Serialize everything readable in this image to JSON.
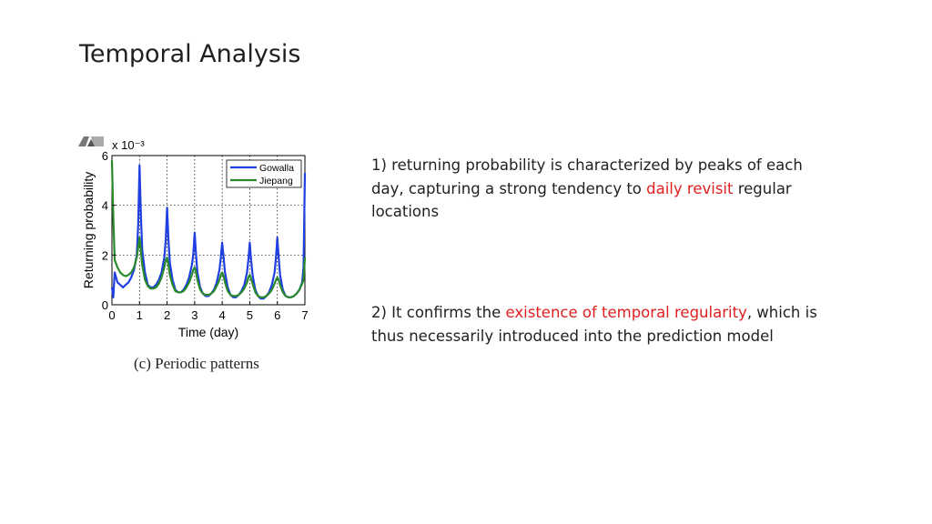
{
  "slide": {
    "title": "Temporal Analysis",
    "points": [
      {
        "before": "1) returning probability is characterized by peaks of each day, capturing a strong tendency to ",
        "highlight": "daily revisit",
        "after": " regular locations"
      },
      {
        "before": "2) It confirms the ",
        "highlight": "existence of temporal regularity",
        "after": ", which is thus necessarily introduced into the prediction model"
      }
    ]
  },
  "colors": {
    "highlight": "#e02020",
    "gowalla": "#1f3fe0",
    "jiepang": "#2a8a2a"
  },
  "chart_data": {
    "type": "line",
    "caption": "(c) Periodic patterns",
    "xlabel": "Time (day)",
    "ylabel": "Returning probability",
    "y_multiplier": "x 10⁻³",
    "xlim": [
      0,
      7
    ],
    "ylim": [
      0,
      6
    ],
    "xticks": [
      "0",
      "1",
      "2",
      "3",
      "4",
      "5",
      "6",
      "7"
    ],
    "yticks": [
      "0",
      "2",
      "4",
      "6"
    ],
    "grid": true,
    "legend_position": "top-right",
    "series": [
      {
        "name": "Gowalla",
        "x": [
          0,
          0.05,
          0.1,
          0.2,
          0.3,
          0.4,
          0.5,
          0.6,
          0.7,
          0.8,
          0.9,
          0.95,
          1.0,
          1.05,
          1.1,
          1.2,
          1.3,
          1.4,
          1.5,
          1.6,
          1.7,
          1.8,
          1.9,
          1.95,
          2.0,
          2.05,
          2.1,
          2.2,
          2.3,
          2.4,
          2.5,
          2.6,
          2.7,
          2.8,
          2.9,
          2.95,
          3.0,
          3.05,
          3.1,
          3.2,
          3.3,
          3.4,
          3.5,
          3.6,
          3.7,
          3.8,
          3.9,
          3.95,
          4.0,
          4.05,
          4.1,
          4.2,
          4.3,
          4.4,
          4.5,
          4.6,
          4.7,
          4.8,
          4.9,
          4.95,
          5.0,
          5.05,
          5.1,
          5.2,
          5.3,
          5.4,
          5.5,
          5.6,
          5.7,
          5.8,
          5.9,
          5.95,
          6.0,
          6.05,
          6.1,
          6.2,
          6.3,
          6.4,
          6.5,
          6.6,
          6.7,
          6.8,
          6.9,
          6.95,
          7.0
        ],
        "y": [
          0.7,
          0.3,
          1.3,
          0.9,
          0.8,
          0.7,
          0.8,
          0.9,
          1.1,
          1.4,
          2.0,
          3.2,
          5.6,
          3.6,
          2.2,
          1.3,
          0.8,
          0.7,
          0.7,
          0.8,
          1.0,
          1.3,
          1.9,
          2.6,
          3.9,
          2.6,
          1.7,
          1.0,
          0.6,
          0.5,
          0.5,
          0.6,
          0.8,
          1.1,
          1.6,
          2.0,
          2.9,
          2.0,
          1.3,
          0.7,
          0.45,
          0.35,
          0.35,
          0.45,
          0.6,
          0.9,
          1.4,
          1.9,
          2.5,
          1.9,
          1.3,
          0.7,
          0.4,
          0.3,
          0.3,
          0.4,
          0.55,
          0.8,
          1.3,
          1.8,
          2.5,
          1.8,
          1.2,
          0.6,
          0.35,
          0.25,
          0.25,
          0.35,
          0.5,
          0.8,
          1.3,
          1.9,
          2.7,
          1.9,
          1.2,
          0.6,
          0.35,
          0.3,
          0.3,
          0.35,
          0.45,
          0.6,
          0.9,
          1.5,
          5.3
        ]
      },
      {
        "name": "Jiepang",
        "x": [
          0,
          0.05,
          0.1,
          0.2,
          0.3,
          0.4,
          0.5,
          0.6,
          0.7,
          0.8,
          0.9,
          0.95,
          1.0,
          1.05,
          1.1,
          1.2,
          1.3,
          1.4,
          1.5,
          1.6,
          1.7,
          1.8,
          1.9,
          1.95,
          2.0,
          2.05,
          2.1,
          2.2,
          2.3,
          2.4,
          2.5,
          2.6,
          2.7,
          2.8,
          2.9,
          2.95,
          3.0,
          3.05,
          3.1,
          3.2,
          3.3,
          3.4,
          3.5,
          3.6,
          3.7,
          3.8,
          3.9,
          3.95,
          4.0,
          4.05,
          4.1,
          4.2,
          4.3,
          4.4,
          4.5,
          4.6,
          4.7,
          4.8,
          4.9,
          4.95,
          5.0,
          5.05,
          5.1,
          5.2,
          5.3,
          5.4,
          5.5,
          5.6,
          5.7,
          5.8,
          5.9,
          5.95,
          6.0,
          6.05,
          6.1,
          6.2,
          6.3,
          6.4,
          6.5,
          6.6,
          6.7,
          6.8,
          6.9,
          6.95,
          7.0
        ],
        "y": [
          5.8,
          3.5,
          1.8,
          1.5,
          1.3,
          1.2,
          1.15,
          1.2,
          1.3,
          1.5,
          1.9,
          2.3,
          2.7,
          2.2,
          1.6,
          1.0,
          0.75,
          0.65,
          0.65,
          0.7,
          0.85,
          1.1,
          1.5,
          1.8,
          1.9,
          1.6,
          1.2,
          0.8,
          0.55,
          0.5,
          0.5,
          0.55,
          0.7,
          0.9,
          1.2,
          1.4,
          1.5,
          1.3,
          1.0,
          0.6,
          0.45,
          0.4,
          0.4,
          0.45,
          0.55,
          0.75,
          1.0,
          1.2,
          1.3,
          1.15,
          0.9,
          0.55,
          0.4,
          0.35,
          0.35,
          0.4,
          0.5,
          0.65,
          0.9,
          1.1,
          1.2,
          1.05,
          0.85,
          0.5,
          0.35,
          0.3,
          0.3,
          0.35,
          0.45,
          0.6,
          0.85,
          1.0,
          1.1,
          1.0,
          0.8,
          0.5,
          0.35,
          0.3,
          0.3,
          0.35,
          0.45,
          0.6,
          0.85,
          1.0,
          1.9
        ]
      }
    ]
  }
}
